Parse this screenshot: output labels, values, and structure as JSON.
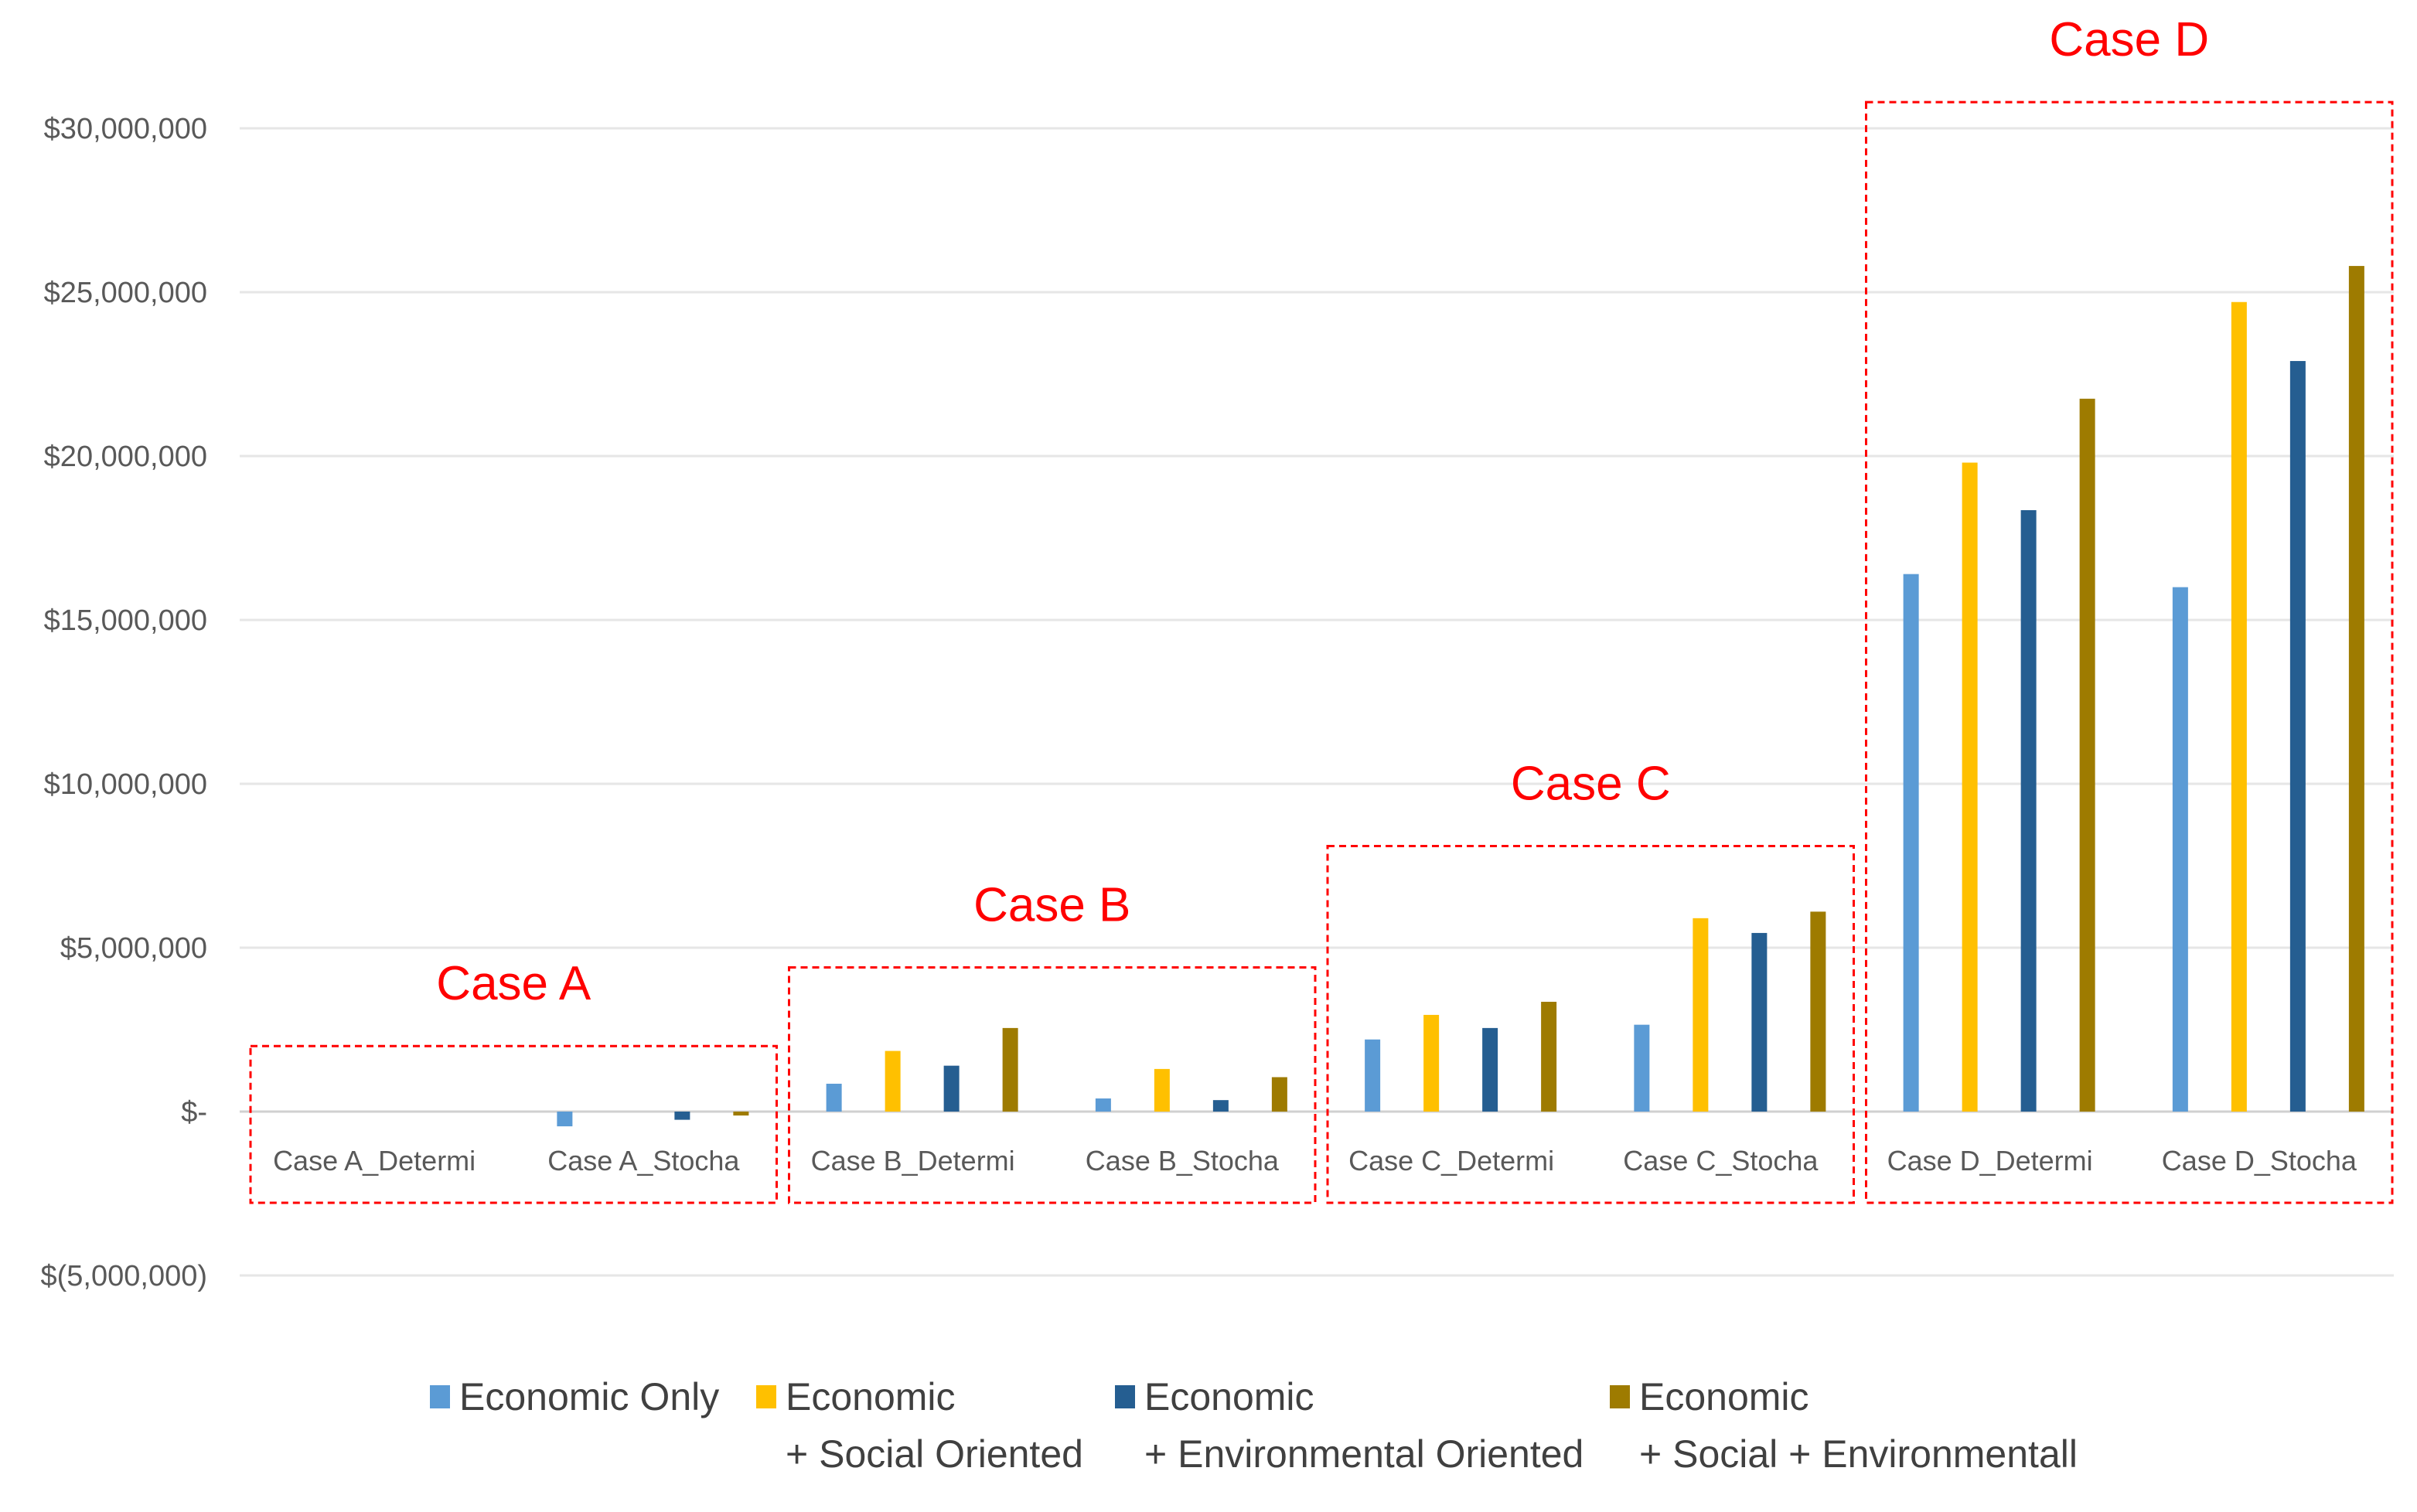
{
  "chart_data": {
    "type": "bar",
    "title": "",
    "xlabel": "",
    "ylabel": "",
    "ylim": [
      -5000000,
      30000000
    ],
    "yticks": [
      30000000,
      25000000,
      20000000,
      15000000,
      10000000,
      5000000,
      0,
      -5000000
    ],
    "ytick_labels": [
      "$30,000,000",
      "$25,000,000",
      "$20,000,000",
      "$15,000,000",
      "$10,000,000",
      "$5,000,000",
      "$-",
      "$(5,000,000)"
    ],
    "categories": [
      "Case A_Determi",
      "Case A_Stocha",
      "Case B_Determi",
      "Case B_Stocha",
      "Case C_Determi",
      "Case C_Stocha",
      "Case D_Determi",
      "Case D_Stocha"
    ],
    "series": [
      {
        "name": "Economic Only",
        "color": "#5b9bd5",
        "values": [
          0,
          -450000,
          850000,
          400000,
          2200000,
          2650000,
          16400000,
          16000000
        ]
      },
      {
        "name": "Economic + Social Oriented",
        "color": "#ffc000",
        "values": [
          0,
          0,
          1850000,
          1300000,
          2950000,
          5900000,
          19800000,
          24700000
        ]
      },
      {
        "name": "Economic + Environmental Oriented",
        "color": "#255e91",
        "values": [
          0,
          -250000,
          1400000,
          350000,
          2550000,
          5450000,
          18350000,
          22900000
        ]
      },
      {
        "name": "Economic + Social + Environmentall",
        "color": "#9e7b00",
        "values": [
          0,
          -120000,
          2550000,
          1050000,
          3350000,
          6100000,
          21750000,
          25800000
        ]
      }
    ],
    "annotations": [
      {
        "label": "Case A",
        "categories": [
          0,
          1
        ],
        "box_top_value": 2000000
      },
      {
        "label": "Case B",
        "categories": [
          2,
          3
        ],
        "box_top_value": 4400000
      },
      {
        "label": "Case C",
        "categories": [
          4,
          5
        ],
        "box_top_value": 8100000
      },
      {
        "label": "Case D",
        "categories": [
          6,
          7
        ],
        "box_top_value": 30800000
      }
    ],
    "legend": {
      "placement": "bottom",
      "items": [
        {
          "line1": "Economic Only",
          "line2": ""
        },
        {
          "line1": "Economic",
          "line2": "+ Social Oriented"
        },
        {
          "line1": "Economic",
          "line2": "+ Environmental Oriented"
        },
        {
          "line1": "Economic",
          "line2": "+ Social + Environmentall"
        }
      ]
    },
    "annotation_color": "#ff0000",
    "grid": true
  }
}
